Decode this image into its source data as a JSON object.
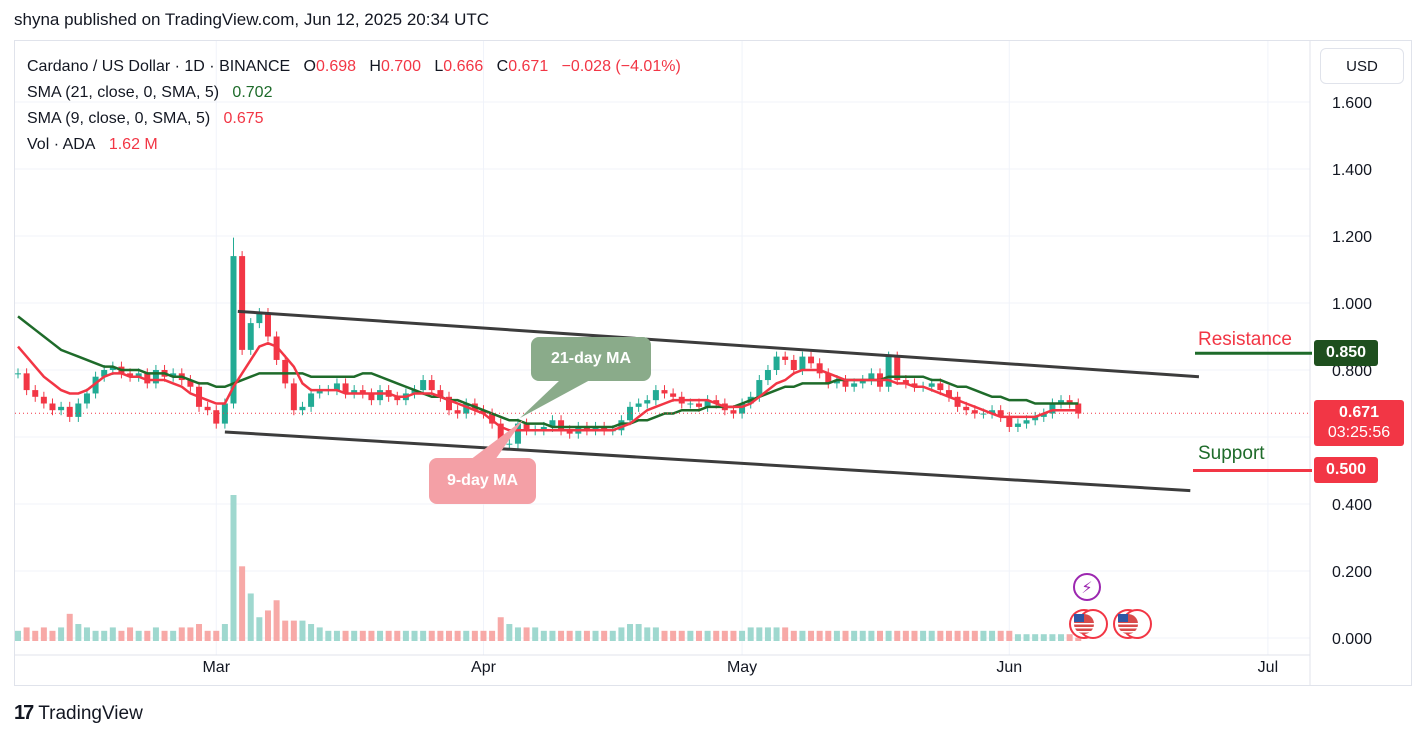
{
  "header": {
    "published": "shyna published on TradingView.com, Jun 12, 2025 20:34 UTC"
  },
  "legend": {
    "symbol": "Cardano / US Dollar · 1D · BINANCE",
    "o_label": "O",
    "o_value": "0.698",
    "h_label": "H",
    "h_value": "0.700",
    "l_label": "L",
    "l_value": "0.666",
    "c_label": "C",
    "c_value": "0.671",
    "change": "−0.028 (−4.01%)",
    "sma21_label": "SMA (21, close, 0, SMA, 5)",
    "sma21_value": "0.702",
    "sma9_label": "SMA (9, close, 0, SMA, 5)",
    "sma9_value": "0.675",
    "vol_label": "Vol · ADA",
    "vol_value": "1.62 M"
  },
  "currency_button": "USD",
  "annotations": {
    "resistance_label": "Resistance",
    "resistance_value": "0.850",
    "support_label": "Support",
    "support_value": "0.500",
    "ma21_callout": "21-day MA",
    "ma9_callout": "9-day MA",
    "last_price": "0.671",
    "countdown": "03:25:56"
  },
  "footer": {
    "brand": "TradingView",
    "logo": "17"
  },
  "colors": {
    "up": "#22ab94",
    "down": "#f23645",
    "sma21": "#1e6b2a",
    "sma9": "#f23645",
    "channel": "#3c3c3c"
  },
  "chart_data": {
    "type": "candlestick",
    "title": "Cardano / US Dollar · 1D · BINANCE",
    "ylim": [
      0,
      1.7
    ],
    "y_ticks": [
      "1.600",
      "1.400",
      "1.200",
      "1.000",
      "0.800",
      "0.400",
      "0.200",
      "0.000"
    ],
    "y_tick_values": [
      1.6,
      1.4,
      1.2,
      1.0,
      0.8,
      0.4,
      0.2,
      0.0
    ],
    "x_ticks": [
      "Mar",
      "Apr",
      "May",
      "Jun",
      "Jul"
    ],
    "x_tick_index": [
      23,
      54,
      84,
      115,
      145
    ],
    "closes": [
      0.79,
      0.74,
      0.72,
      0.7,
      0.68,
      0.69,
      0.66,
      0.7,
      0.73,
      0.78,
      0.8,
      0.81,
      0.79,
      0.78,
      0.79,
      0.76,
      0.8,
      0.78,
      0.79,
      0.77,
      0.75,
      0.69,
      0.68,
      0.64,
      0.7,
      1.14,
      0.86,
      0.94,
      0.97,
      0.9,
      0.83,
      0.76,
      0.68,
      0.69,
      0.73,
      0.74,
      0.74,
      0.76,
      0.73,
      0.74,
      0.73,
      0.71,
      0.74,
      0.72,
      0.71,
      0.73,
      0.74,
      0.77,
      0.74,
      0.72,
      0.68,
      0.67,
      0.7,
      0.68,
      0.67,
      0.64,
      0.58,
      0.58,
      0.64,
      0.62,
      0.62,
      0.63,
      0.65,
      0.62,
      0.61,
      0.63,
      0.62,
      0.63,
      0.62,
      0.62,
      0.65,
      0.69,
      0.7,
      0.71,
      0.74,
      0.73,
      0.72,
      0.7,
      0.7,
      0.69,
      0.71,
      0.7,
      0.68,
      0.67,
      0.7,
      0.72,
      0.77,
      0.8,
      0.84,
      0.83,
      0.8,
      0.84,
      0.82,
      0.79,
      0.76,
      0.77,
      0.75,
      0.76,
      0.77,
      0.79,
      0.75,
      0.84,
      0.77,
      0.76,
      0.75,
      0.75,
      0.76,
      0.74,
      0.72,
      0.69,
      0.68,
      0.67,
      0.67,
      0.68,
      0.66,
      0.63,
      0.64,
      0.65,
      0.66,
      0.67,
      0.7,
      0.71,
      0.7,
      0.67
    ],
    "open_first": 0.79,
    "volume": [
      0.03,
      0.04,
      0.03,
      0.04,
      0.03,
      0.04,
      0.08,
      0.05,
      0.04,
      0.03,
      0.03,
      0.04,
      0.03,
      0.04,
      0.03,
      0.03,
      0.04,
      0.03,
      0.03,
      0.04,
      0.04,
      0.05,
      0.03,
      0.03,
      0.05,
      0.43,
      0.22,
      0.14,
      0.07,
      0.09,
      0.12,
      0.06,
      0.06,
      0.06,
      0.05,
      0.04,
      0.03,
      0.03,
      0.03,
      0.03,
      0.03,
      0.03,
      0.03,
      0.03,
      0.03,
      0.03,
      0.03,
      0.03,
      0.03,
      0.03,
      0.03,
      0.03,
      0.03,
      0.03,
      0.03,
      0.03,
      0.07,
      0.05,
      0.04,
      0.04,
      0.04,
      0.03,
      0.03,
      0.03,
      0.03,
      0.03,
      0.03,
      0.03,
      0.03,
      0.03,
      0.04,
      0.05,
      0.05,
      0.04,
      0.04,
      0.03,
      0.03,
      0.03,
      0.03,
      0.03,
      0.03,
      0.03,
      0.03,
      0.03,
      0.03,
      0.04,
      0.04,
      0.04,
      0.04,
      0.04,
      0.03,
      0.03,
      0.03,
      0.03,
      0.03,
      0.03,
      0.03,
      0.03,
      0.03,
      0.03,
      0.03,
      0.03,
      0.03,
      0.03,
      0.03,
      0.03,
      0.03,
      0.03,
      0.03,
      0.03,
      0.03,
      0.03,
      0.03,
      0.03,
      0.03,
      0.03,
      0.02,
      0.02,
      0.02,
      0.02,
      0.02,
      0.02,
      0.02,
      0.01
    ],
    "sma21": [
      0.96,
      0.94,
      0.92,
      0.9,
      0.88,
      0.86,
      0.85,
      0.84,
      0.83,
      0.82,
      0.81,
      0.81,
      0.8,
      0.8,
      0.8,
      0.79,
      0.79,
      0.79,
      0.78,
      0.78,
      0.77,
      0.76,
      0.76,
      0.75,
      0.75,
      0.76,
      0.77,
      0.78,
      0.79,
      0.79,
      0.79,
      0.79,
      0.79,
      0.79,
      0.78,
      0.78,
      0.78,
      0.78,
      0.78,
      0.78,
      0.79,
      0.79,
      0.78,
      0.77,
      0.76,
      0.75,
      0.74,
      0.73,
      0.72,
      0.72,
      0.71,
      0.71,
      0.7,
      0.69,
      0.68,
      0.67,
      0.66,
      0.65,
      0.65,
      0.64,
      0.64,
      0.64,
      0.63,
      0.63,
      0.63,
      0.63,
      0.63,
      0.63,
      0.63,
      0.63,
      0.64,
      0.64,
      0.65,
      0.65,
      0.66,
      0.67,
      0.67,
      0.68,
      0.68,
      0.68,
      0.69,
      0.69,
      0.69,
      0.69,
      0.7,
      0.71,
      0.72,
      0.73,
      0.74,
      0.75,
      0.75,
      0.76,
      0.76,
      0.76,
      0.76,
      0.77,
      0.77,
      0.77,
      0.77,
      0.77,
      0.77,
      0.78,
      0.78,
      0.78,
      0.78,
      0.78,
      0.77,
      0.77,
      0.76,
      0.75,
      0.75,
      0.74,
      0.73,
      0.72,
      0.72,
      0.71,
      0.71,
      0.71,
      0.7,
      0.7,
      0.7,
      0.7,
      0.7,
      0.7
    ],
    "sma9": [
      0.87,
      0.84,
      0.81,
      0.78,
      0.76,
      0.74,
      0.73,
      0.73,
      0.74,
      0.76,
      0.78,
      0.79,
      0.79,
      0.78,
      0.78,
      0.77,
      0.77,
      0.77,
      0.76,
      0.75,
      0.73,
      0.72,
      0.71,
      0.7,
      0.7,
      0.75,
      0.79,
      0.83,
      0.87,
      0.88,
      0.87,
      0.84,
      0.81,
      0.76,
      0.74,
      0.74,
      0.74,
      0.74,
      0.73,
      0.73,
      0.73,
      0.73,
      0.73,
      0.73,
      0.72,
      0.72,
      0.73,
      0.73,
      0.73,
      0.72,
      0.71,
      0.7,
      0.69,
      0.68,
      0.67,
      0.65,
      0.63,
      0.62,
      0.62,
      0.62,
      0.62,
      0.62,
      0.62,
      0.62,
      0.62,
      0.62,
      0.62,
      0.62,
      0.62,
      0.62,
      0.63,
      0.64,
      0.66,
      0.68,
      0.69,
      0.7,
      0.71,
      0.71,
      0.71,
      0.71,
      0.71,
      0.7,
      0.69,
      0.69,
      0.69,
      0.7,
      0.72,
      0.74,
      0.76,
      0.77,
      0.79,
      0.8,
      0.8,
      0.8,
      0.79,
      0.78,
      0.77,
      0.77,
      0.77,
      0.77,
      0.77,
      0.77,
      0.76,
      0.76,
      0.75,
      0.75,
      0.74,
      0.73,
      0.72,
      0.71,
      0.7,
      0.69,
      0.68,
      0.67,
      0.66,
      0.66,
      0.66,
      0.66,
      0.66,
      0.67,
      0.68,
      0.68,
      0.68,
      0.68
    ],
    "channel_upper": {
      "from": [
        25.5,
        0.975
      ],
      "to": [
        137,
        0.78
      ]
    },
    "channel_lower": {
      "from": [
        24,
        0.615
      ],
      "to": [
        136,
        0.44
      ]
    },
    "resistance": 0.85,
    "support": 0.5,
    "last_close": 0.671
  }
}
